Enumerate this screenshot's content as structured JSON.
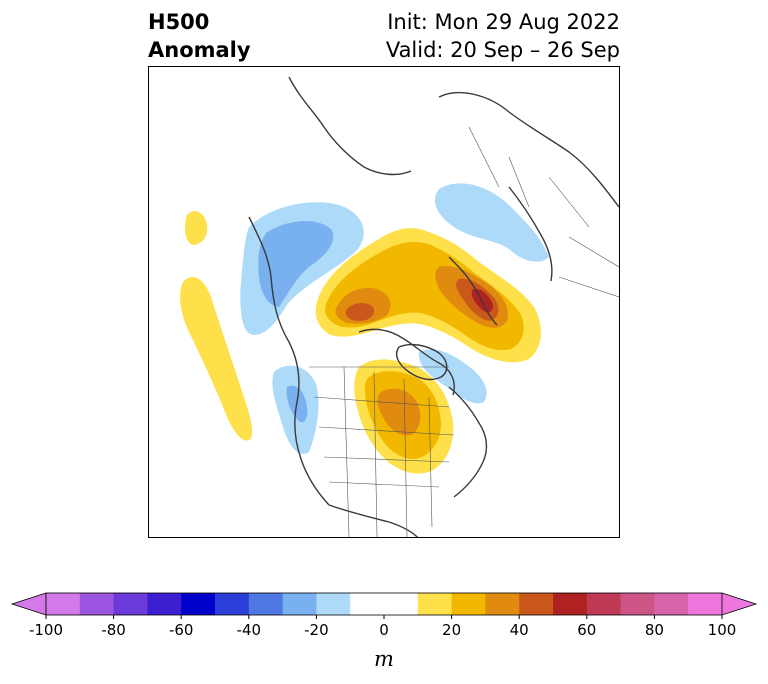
{
  "header": {
    "variable": "H500",
    "field": "Anomaly",
    "init": "Init: Mon 29 Aug 2022",
    "valid": "Valid: 20 Sep – 26 Sep"
  },
  "map": {
    "projection": "north-polar-stereographic",
    "region": "Northern Hemisphere",
    "features": [
      "coastlines",
      "country-borders",
      "us-state-borders",
      "canadian-province-borders"
    ],
    "anomaly_areas": [
      {
        "name": "alaska-bering-ridge",
        "sign": "positive",
        "peak": 40
      },
      {
        "name": "siberia-far-east-ridge",
        "sign": "positive",
        "peak": 60
      },
      {
        "name": "central-canada-ridge",
        "sign": "positive",
        "peak": 40
      },
      {
        "name": "east-pacific-positive",
        "sign": "positive",
        "peak": 10
      },
      {
        "name": "north-atlantic-trough",
        "sign": "negative",
        "peak": -30
      },
      {
        "name": "west-coast-trough",
        "sign": "negative",
        "peak": -30
      },
      {
        "name": "scandinavia-trough",
        "sign": "negative",
        "peak": -10
      },
      {
        "name": "hudson-bay-trough",
        "sign": "negative",
        "peak": -10
      }
    ]
  },
  "colorbar": {
    "units": "m",
    "extend": "both",
    "ticks": [
      "-100",
      "-80",
      "-60",
      "-40",
      "-20",
      "0",
      "20",
      "40",
      "60",
      "80",
      "100"
    ],
    "levels": [
      -100,
      -90,
      -80,
      -70,
      -60,
      -50,
      -40,
      -30,
      -20,
      -10,
      10,
      20,
      30,
      40,
      50,
      60,
      70,
      80,
      90,
      100
    ],
    "low_extend_color": "#d47ae8",
    "high_extend_color": "#ee77dd",
    "colors": [
      "#d47ae8",
      "#9c55e0",
      "#6b3ad8",
      "#3a1fd0",
      "#0000cc",
      "#2a3fd8",
      "#4f78e4",
      "#78b0f0",
      "#addaf8",
      "#ffffff",
      "#fee04a",
      "#f2b800",
      "#e08a10",
      "#c9581a",
      "#b02222",
      "#c03a55",
      "#cc5585",
      "#d865aa",
      "#ee77dd"
    ]
  }
}
